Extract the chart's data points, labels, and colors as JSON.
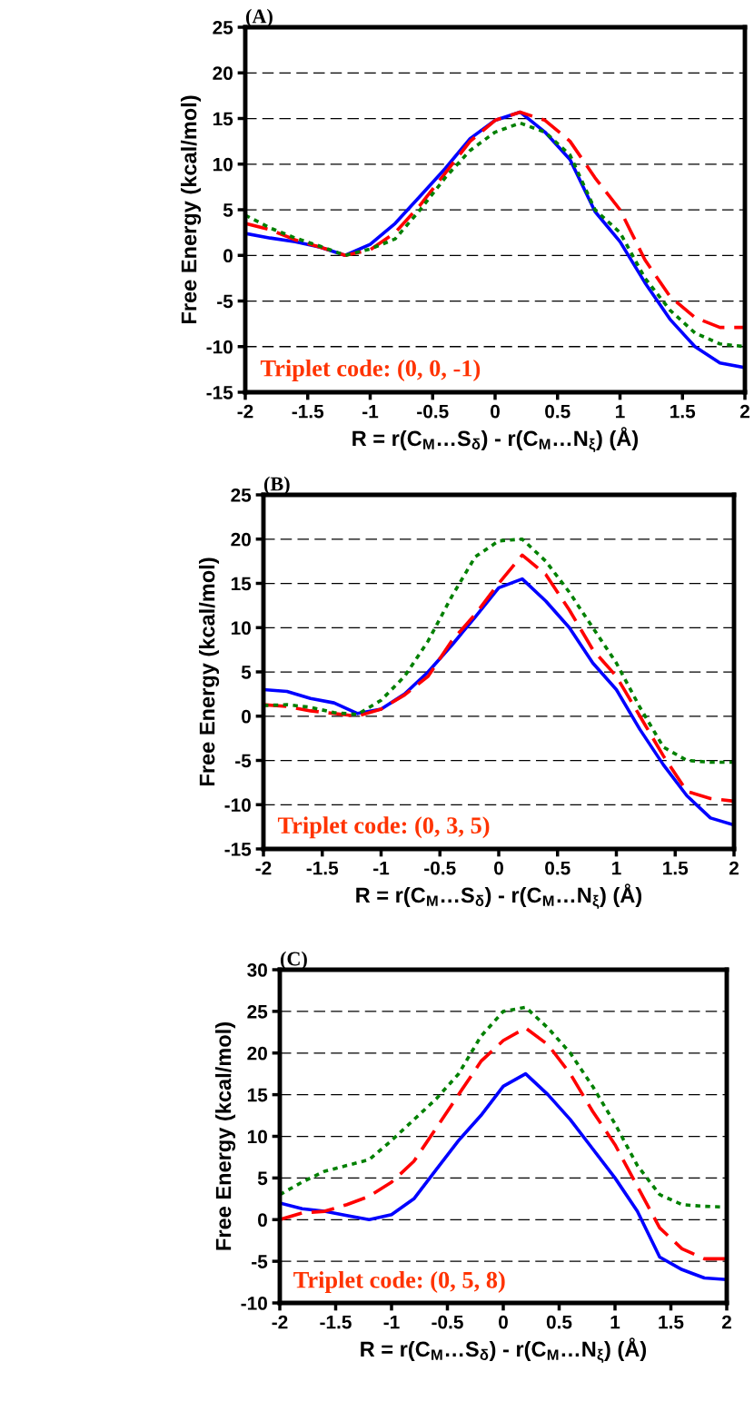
{
  "chart_data": [
    {
      "type": "line",
      "title": "(A)",
      "xlabel": "R = r(C$_{M}$…S$_{δ}$) - r(C$_{M}$…N$_{ξ}$) (Å)",
      "ylabel": "Free Energy (kcal/mol)",
      "x": [
        -2,
        -1.8,
        -1.6,
        -1.4,
        -1.2,
        -1.0,
        -0.8,
        -0.6,
        -0.4,
        -0.2,
        0,
        0.2,
        0.4,
        0.6,
        0.8,
        1.0,
        1.2,
        1.4,
        1.6,
        1.8,
        2.0
      ],
      "series": [
        {
          "color": "#0000ff",
          "line_style": "solid",
          "values": [
            2.4,
            1.9,
            1.5,
            0.9,
            0,
            1.2,
            3.5,
            6.5,
            9.5,
            12.8,
            14.8,
            15.7,
            13.5,
            10.5,
            4.8,
            1.5,
            -3,
            -7,
            -10,
            -11.8,
            -12.3
          ]
        },
        {
          "color": "#ff0000",
          "line_style": "dashed",
          "values": [
            3.5,
            2.8,
            1.7,
            0.9,
            0,
            0.6,
            2.5,
            5.5,
            9,
            12.5,
            14.8,
            15.7,
            14.8,
            12.5,
            8.5,
            5,
            -0.5,
            -4.5,
            -6.8,
            -7.9,
            -7.9
          ]
        },
        {
          "color": "#008000",
          "line_style": "dotted",
          "values": [
            4.4,
            3,
            1.9,
            1,
            0,
            0.7,
            1.8,
            5,
            8.5,
            11.5,
            13.5,
            14.5,
            13.5,
            11,
            5,
            2.5,
            -2.5,
            -6,
            -8.5,
            -9.7,
            -10
          ]
        }
      ],
      "xlim": [
        -2,
        2
      ],
      "ylim": [
        -15,
        25
      ],
      "xticks": [
        -2,
        -1.5,
        -1,
        -0.5,
        0,
        0.5,
        1,
        1.5,
        2
      ],
      "yticks": [
        -15,
        -10,
        -5,
        0,
        5,
        10,
        15,
        20,
        25
      ],
      "grid": "y",
      "annotations": [
        "Triplet code: (0, 0, -1)"
      ]
    },
    {
      "type": "line",
      "title": "(B)",
      "xlabel": "R = r(C$_{M}$…S$_{δ}$) - r(C$_{M}$…N$_{ξ}$) (Å)",
      "ylabel": "Free Energy (kcal/mol)",
      "x": [
        -2,
        -1.8,
        -1.6,
        -1.4,
        -1.2,
        -1.0,
        -0.8,
        -0.6,
        -0.4,
        -0.2,
        0,
        0.2,
        0.4,
        0.6,
        0.8,
        1.0,
        1.2,
        1.4,
        1.6,
        1.8,
        2.0
      ],
      "series": [
        {
          "color": "#0000ff",
          "line_style": "solid",
          "values": [
            3,
            2.8,
            2,
            1.5,
            0.3,
            0.8,
            2.5,
            5,
            8,
            11.2,
            14.5,
            15.5,
            13,
            10,
            6,
            3,
            -1.5,
            -5.5,
            -9,
            -11.5,
            -12.3
          ]
        },
        {
          "color": "#ff0000",
          "line_style": "dashed",
          "values": [
            1.3,
            1.1,
            0.6,
            0.3,
            0,
            0.8,
            2.4,
            4.5,
            8.5,
            11.5,
            15,
            18.2,
            16,
            12,
            7.5,
            4.5,
            0,
            -4.5,
            -8.5,
            -9.3,
            -9.6
          ]
        },
        {
          "color": "#008000",
          "line_style": "dotted",
          "values": [
            1.2,
            1.3,
            1,
            0.4,
            0.2,
            1.8,
            4.5,
            8.5,
            13.5,
            18,
            19.8,
            20,
            17.5,
            14,
            10,
            6,
            1,
            -3.5,
            -5,
            -5.2,
            -5.2
          ]
        }
      ],
      "xlim": [
        -2,
        2
      ],
      "ylim": [
        -15,
        25
      ],
      "xticks": [
        -2,
        -1.5,
        -1,
        -0.5,
        0,
        0.5,
        1,
        1.5,
        2
      ],
      "yticks": [
        -15,
        -10,
        -5,
        0,
        5,
        10,
        15,
        20,
        25
      ],
      "grid": "y",
      "annotations": [
        "Triplet code: (0, 3, 5)"
      ]
    },
    {
      "type": "line",
      "title": "(C)",
      "xlabel": "R = r(C$_{M}$…S$_{δ}$) - r(C$_{M}$…N$_{ξ}$) (Å)",
      "ylabel": "Free Energy (kcal/mol)",
      "x": [
        -2,
        -1.8,
        -1.6,
        -1.4,
        -1.2,
        -1.0,
        -0.8,
        -0.6,
        -0.4,
        -0.2,
        0,
        0.2,
        0.4,
        0.6,
        0.8,
        1.0,
        1.2,
        1.4,
        1.6,
        1.8,
        2.0
      ],
      "series": [
        {
          "color": "#0000ff",
          "line_style": "solid",
          "values": [
            2,
            1.3,
            1,
            0.5,
            0,
            0.6,
            2.5,
            6,
            9.5,
            12.5,
            16,
            17.5,
            15,
            12,
            8.5,
            5,
            1,
            -4.5,
            -6,
            -7,
            -7.2
          ]
        },
        {
          "color": "#ff0000",
          "line_style": "dashed",
          "values": [
            0,
            0.8,
            1,
            1.8,
            2.8,
            4.5,
            7,
            11,
            15,
            19,
            21.5,
            23,
            21,
            17.5,
            13,
            9,
            4,
            -1,
            -3.5,
            -4.7,
            -4.7
          ]
        },
        {
          "color": "#008000",
          "line_style": "dotted",
          "values": [
            3,
            4.5,
            5.8,
            6.5,
            7.2,
            9.5,
            12,
            14.5,
            17.5,
            22,
            25,
            25.5,
            23,
            20,
            16,
            11.5,
            6.5,
            3,
            1.8,
            1.6,
            1.5
          ]
        }
      ],
      "xlim": [
        -2,
        2
      ],
      "ylim": [
        -10,
        30
      ],
      "xticks": [
        -2,
        -1.5,
        -1,
        -0.5,
        0,
        0.5,
        1,
        1.5,
        2
      ],
      "yticks": [
        -10,
        -5,
        0,
        5,
        10,
        15,
        20,
        25,
        30
      ],
      "grid": "y",
      "annotations": [
        "Triplet code: (0, 5, 8)"
      ]
    }
  ]
}
